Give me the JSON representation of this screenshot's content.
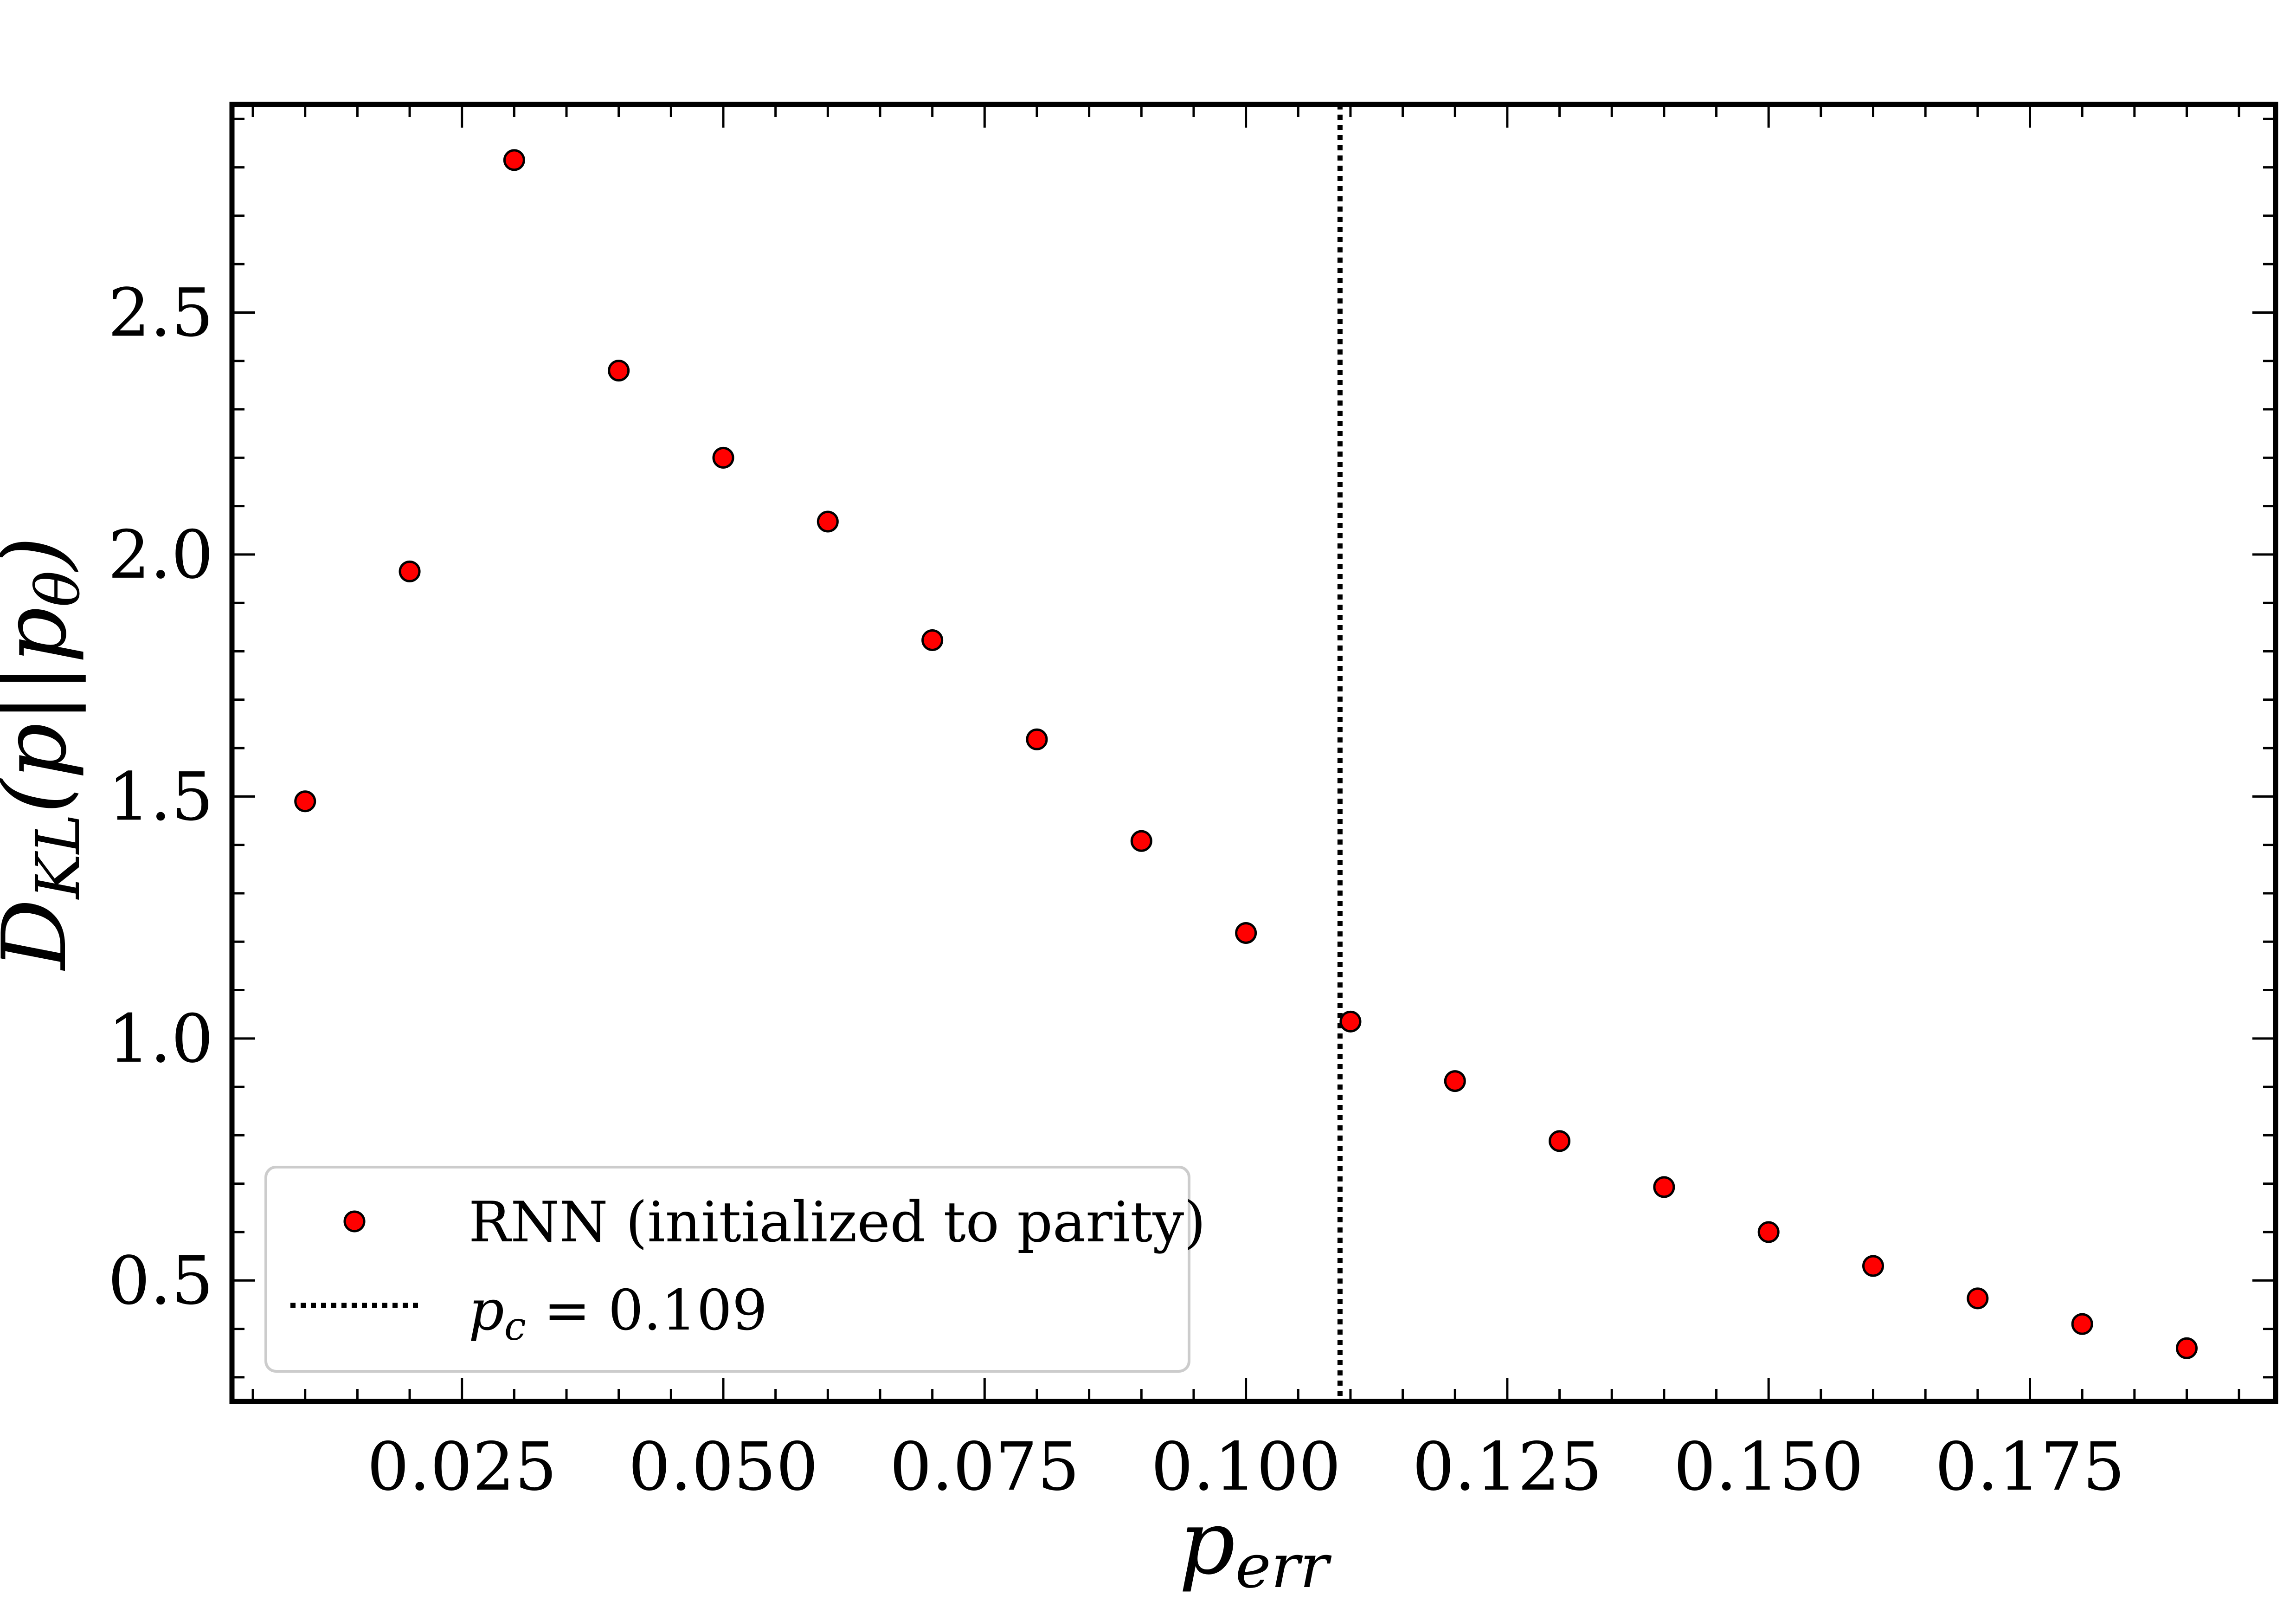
{
  "chart_data": {
    "type": "scatter",
    "xlabel": {
      "base": "p",
      "sub": "err"
    },
    "ylabel": {
      "base": "D",
      "sub": "KL",
      "rest": "(p||p",
      "sub2": "θ",
      "end": ")"
    },
    "xlim": [
      0.003,
      0.1985
    ],
    "ylim": [
      0.25,
      2.93
    ],
    "x_ticks": [
      0.025,
      0.05,
      0.075,
      0.1,
      0.125,
      0.15,
      0.175
    ],
    "x_tick_labels": [
      "0.025",
      "0.050",
      "0.075",
      "0.100",
      "0.125",
      "0.150",
      "0.175"
    ],
    "y_ticks": [
      0.5,
      1.0,
      1.5,
      2.0,
      2.5
    ],
    "y_tick_labels": [
      "0.5",
      "1.0",
      "1.5",
      "2.0",
      "2.5"
    ],
    "grid": false,
    "legend_position": "lower-left",
    "series": [
      {
        "name": "RNN (initialized to parity)",
        "color": "#ff0000",
        "edge_color": "#000000",
        "x": [
          0.01,
          0.02,
          0.03,
          0.04,
          0.05,
          0.06,
          0.07,
          0.08,
          0.09,
          0.1,
          0.11,
          0.12,
          0.13,
          0.14,
          0.15,
          0.16,
          0.17,
          0.18,
          0.19
        ],
        "y": [
          1.49,
          1.965,
          2.815,
          2.38,
          2.2,
          2.068,
          1.823,
          1.618,
          1.408,
          1.218,
          1.035,
          0.912,
          0.788,
          0.693,
          0.6,
          0.53,
          0.463,
          0.41,
          0.36
        ]
      }
    ],
    "vline": {
      "x": 0.109,
      "style": "dotted",
      "color": "#000000",
      "label": {
        "base": "p",
        "sub": "c",
        "eq": " = 0.109"
      }
    }
  }
}
